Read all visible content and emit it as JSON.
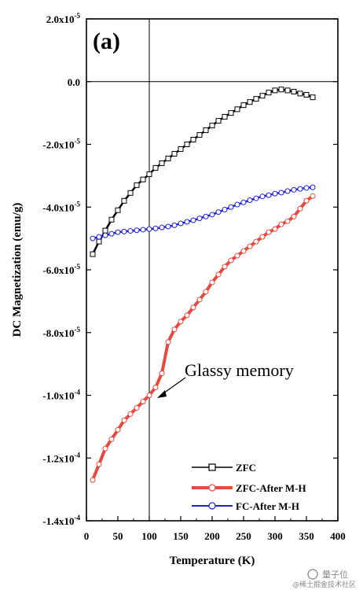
{
  "chart_data": {
    "type": "line",
    "panel_label": "(a)",
    "xlabel": "Temperature (K)",
    "ylabel": "DC Magnetization (emu/g)",
    "xlim": [
      0,
      400
    ],
    "ylim": [
      -0.00014,
      2e-05
    ],
    "x_ticks": [
      0,
      50,
      100,
      150,
      200,
      250,
      300,
      350,
      400
    ],
    "y_ticks": [
      {
        "value": 2e-05,
        "mant": "2.0x10",
        "exp": "-5"
      },
      {
        "value": 0.0,
        "mant": "0.0",
        "exp": ""
      },
      {
        "value": -2e-05,
        "mant": "-2.0x10",
        "exp": "-5"
      },
      {
        "value": -4e-05,
        "mant": "-4.0x10",
        "exp": "-5"
      },
      {
        "value": -6e-05,
        "mant": "-6.0x10",
        "exp": "-5"
      },
      {
        "value": -8e-05,
        "mant": "-8.0x10",
        "exp": "-5"
      },
      {
        "value": -0.0001,
        "mant": "-1.0x10",
        "exp": "-4"
      },
      {
        "value": -0.00012,
        "mant": "-1.2x10",
        "exp": "-4"
      },
      {
        "value": -0.00014,
        "mant": "-1.4x10",
        "exp": "-4"
      }
    ],
    "reference_lines": {
      "x": 100,
      "y": 0
    },
    "annotation": {
      "text": "Glassy memory",
      "x": 115,
      "y": -0.0001
    },
    "grid": false,
    "legend_position": "bottom-right",
    "series": [
      {
        "name": "ZFC",
        "color": "#000000",
        "marker": "square",
        "x": [
          10,
          20,
          30,
          40,
          50,
          60,
          70,
          80,
          90,
          100,
          110,
          120,
          130,
          140,
          150,
          160,
          170,
          180,
          190,
          200,
          210,
          220,
          230,
          240,
          250,
          260,
          270,
          280,
          290,
          300,
          310,
          320,
          330,
          340,
          350,
          360
        ],
        "y": [
          -5.5e-05,
          -5.1e-05,
          -4.75e-05,
          -4.4e-05,
          -4.1e-05,
          -3.8e-05,
          -3.55e-05,
          -3.3e-05,
          -3.12e-05,
          -2.95e-05,
          -2.75e-05,
          -2.6e-05,
          -2.45e-05,
          -2.3e-05,
          -2.15e-05,
          -2e-05,
          -1.85e-05,
          -1.7e-05,
          -1.55e-05,
          -1.4e-05,
          -1.25e-05,
          -1.12e-05,
          -1e-05,
          -8.8e-06,
          -7.5e-06,
          -6.5e-06,
          -5.5e-06,
          -4.5e-06,
          -3.5e-06,
          -2.8e-06,
          -2.5e-06,
          -2.8e-06,
          -3.2e-06,
          -3.8e-06,
          -4.2e-06,
          -5e-06
        ]
      },
      {
        "name": "ZFC-After M-H",
        "color": "#e8493e",
        "marker": "circle",
        "x": [
          10,
          20,
          30,
          40,
          50,
          60,
          70,
          80,
          90,
          100,
          110,
          120,
          130,
          140,
          150,
          160,
          170,
          180,
          190,
          200,
          210,
          220,
          230,
          240,
          250,
          260,
          270,
          280,
          290,
          300,
          310,
          320,
          330,
          340,
          350,
          360
        ],
        "y": [
          -0.000127,
          -0.000122,
          -0.000117,
          -0.000114,
          -0.000111,
          -0.000108,
          -0.000106,
          -0.000104,
          -0.000102,
          -0.0001,
          -9.75e-05,
          -9.3e-05,
          -8.3e-05,
          -7.9e-05,
          -7.65e-05,
          -7.45e-05,
          -7.2e-05,
          -6.95e-05,
          -6.7e-05,
          -6.4e-05,
          -6.15e-05,
          -5.9e-05,
          -5.7e-05,
          -5.55e-05,
          -5.4e-05,
          -5.25e-05,
          -5.1e-05,
          -4.95e-05,
          -4.8e-05,
          -4.7e-05,
          -4.55e-05,
          -4.45e-05,
          -4.3e-05,
          -4.05e-05,
          -3.8e-05,
          -3.65e-05
        ]
      },
      {
        "name": "FC-After M-H",
        "color": "#1f1fd6",
        "marker": "circle",
        "x": [
          10,
          20,
          30,
          40,
          50,
          60,
          70,
          80,
          90,
          100,
          110,
          120,
          130,
          140,
          150,
          160,
          170,
          180,
          190,
          200,
          210,
          220,
          230,
          240,
          250,
          260,
          270,
          280,
          290,
          300,
          310,
          320,
          330,
          340,
          350,
          360
        ],
        "y": [
          -5e-05,
          -4.95e-05,
          -4.9e-05,
          -4.85e-05,
          -4.8e-05,
          -4.78e-05,
          -4.76e-05,
          -4.74e-05,
          -4.72e-05,
          -4.7e-05,
          -4.68e-05,
          -4.65e-05,
          -4.62e-05,
          -4.58e-05,
          -4.52e-05,
          -4.47e-05,
          -4.42e-05,
          -4.36e-05,
          -4.3e-05,
          -4.24e-05,
          -4.16e-05,
          -4.08e-05,
          -4e-05,
          -3.92e-05,
          -3.85e-05,
          -3.78e-05,
          -3.72e-05,
          -3.66e-05,
          -3.62e-05,
          -3.57e-05,
          -3.54e-05,
          -3.49e-05,
          -3.45e-05,
          -3.42e-05,
          -3.39e-05,
          -3.37e-05
        ]
      }
    ]
  },
  "watermark": {
    "top": "量子位",
    "bottom": "@稀土掘金技术社区"
  }
}
